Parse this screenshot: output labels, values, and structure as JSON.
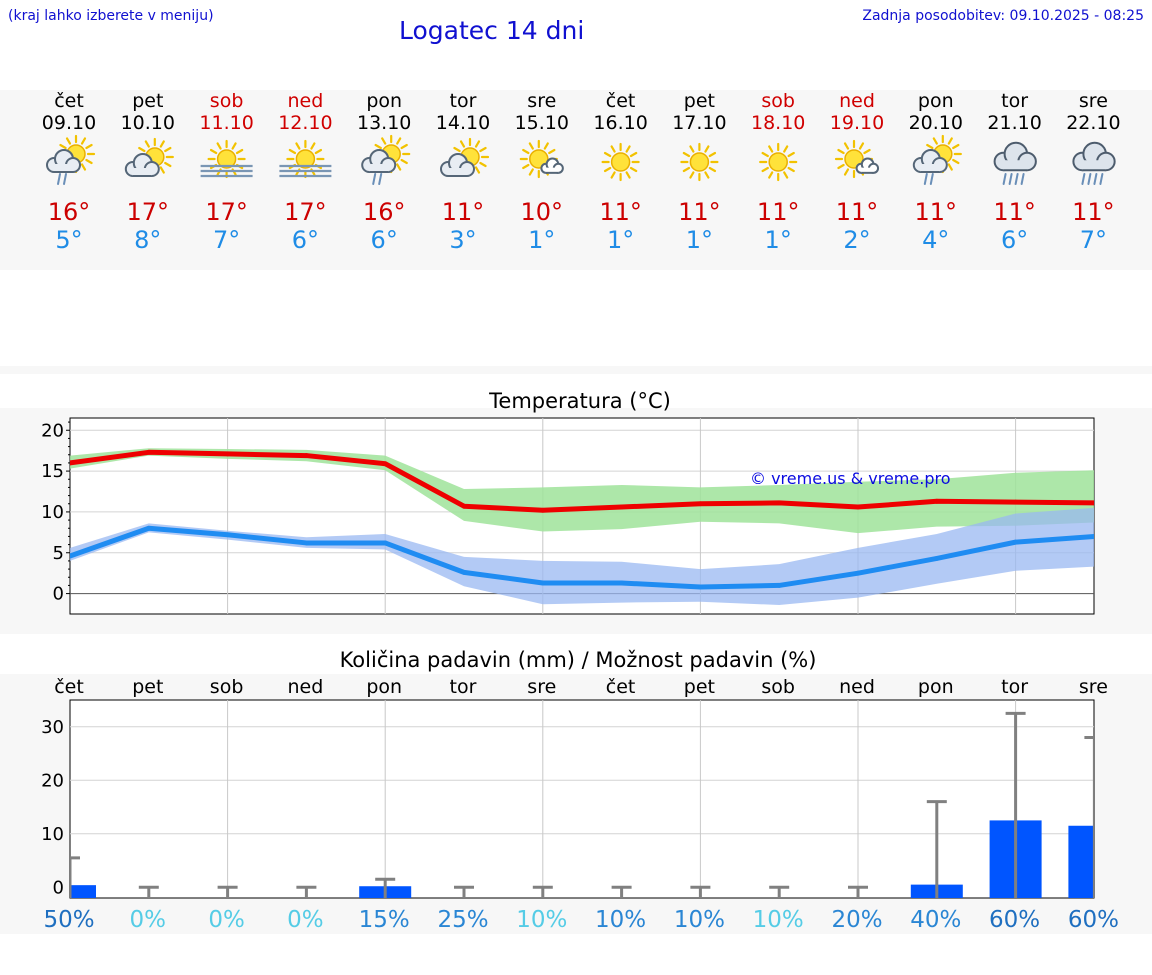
{
  "header": {
    "hint": "(kraj lahko izberete v meniju)",
    "title": "Logatec 14 dni",
    "updated": "Zadnja posodobitev: 09.10.2025 - 08:25"
  },
  "colors": {
    "weekday": "#000000",
    "weekend": "#d00000",
    "tmax": "#cc0000",
    "tmin": "#1f8ce6",
    "bar": "#0055ff"
  },
  "days": [
    {
      "dow": "čet",
      "date": "09.10",
      "weekend": false,
      "icon": "partly-cloudy-rain-icon",
      "tmax": "16°",
      "tmin": "5°"
    },
    {
      "dow": "pet",
      "date": "10.10",
      "weekend": false,
      "icon": "partly-cloudy-icon",
      "tmax": "17°",
      "tmin": "8°"
    },
    {
      "dow": "sob",
      "date": "11.10",
      "weekend": true,
      "icon": "sun-fog-icon",
      "tmax": "17°",
      "tmin": "7°"
    },
    {
      "dow": "ned",
      "date": "12.10",
      "weekend": true,
      "icon": "sun-fog-icon",
      "tmax": "17°",
      "tmin": "6°"
    },
    {
      "dow": "pon",
      "date": "13.10",
      "weekend": false,
      "icon": "partly-cloudy-rain-icon",
      "tmax": "16°",
      "tmin": "6°"
    },
    {
      "dow": "tor",
      "date": "14.10",
      "weekend": false,
      "icon": "partly-cloudy-icon",
      "tmax": "11°",
      "tmin": "3°"
    },
    {
      "dow": "sre",
      "date": "15.10",
      "weekend": false,
      "icon": "sun-small-cloud-icon",
      "tmax": "10°",
      "tmin": "1°"
    },
    {
      "dow": "čet",
      "date": "16.10",
      "weekend": false,
      "icon": "sun-icon",
      "tmax": "11°",
      "tmin": "1°"
    },
    {
      "dow": "pet",
      "date": "17.10",
      "weekend": false,
      "icon": "sun-icon",
      "tmax": "11°",
      "tmin": "1°"
    },
    {
      "dow": "sob",
      "date": "18.10",
      "weekend": true,
      "icon": "sun-icon",
      "tmax": "11°",
      "tmin": "1°"
    },
    {
      "dow": "ned",
      "date": "19.10",
      "weekend": true,
      "icon": "sun-small-cloud-icon",
      "tmax": "11°",
      "tmin": "2°"
    },
    {
      "dow": "pon",
      "date": "20.10",
      "weekend": false,
      "icon": "partly-cloudy-rain-icon",
      "tmax": "11°",
      "tmin": "4°"
    },
    {
      "dow": "tor",
      "date": "21.10",
      "weekend": false,
      "icon": "cloud-rain-icon",
      "tmax": "11°",
      "tmin": "6°"
    },
    {
      "dow": "sre",
      "date": "22.10",
      "weekend": false,
      "icon": "cloud-rain-icon",
      "tmax": "11°",
      "tmin": "7°"
    }
  ],
  "chart_data": [
    {
      "type": "line",
      "title": "Temperatura (°C)",
      "watermark": "© vreme.us & vreme.pro",
      "xlabel": "",
      "ylabel": "",
      "ylim": [
        -2.5,
        21.5
      ],
      "yticks": [
        0,
        5,
        10,
        15,
        20
      ],
      "grid": true,
      "x": [
        0,
        1,
        2,
        3,
        4,
        5,
        6,
        7,
        8,
        9,
        10,
        11,
        12,
        13
      ],
      "series": [
        {
          "name": "Tmax",
          "values": [
            16,
            17.3,
            17.1,
            16.9,
            15.9,
            10.7,
            10.2,
            10.6,
            11.0,
            11.1,
            10.6,
            11.3,
            11.2,
            11.1
          ],
          "band_low": [
            15.3,
            16.9,
            16.5,
            16.2,
            15.1,
            8.9,
            7.6,
            7.9,
            8.8,
            8.6,
            7.4,
            8.2,
            8.3,
            8.7
          ],
          "band_high": [
            16.9,
            17.8,
            17.7,
            17.6,
            16.9,
            12.8,
            13.0,
            13.3,
            13.0,
            13.3,
            13.7,
            14.0,
            14.8,
            15.1
          ]
        },
        {
          "name": "Tmin",
          "values": [
            4.6,
            8.0,
            7.2,
            6.2,
            6.2,
            2.6,
            1.3,
            1.3,
            0.8,
            1.0,
            2.5,
            4.3,
            6.3,
            7.0
          ],
          "band_low": [
            4.0,
            7.5,
            6.6,
            5.6,
            5.4,
            0.9,
            -1.3,
            -1.1,
            -1.0,
            -1.4,
            -0.5,
            1.2,
            2.8,
            3.3
          ],
          "band_high": [
            5.6,
            8.6,
            7.7,
            6.9,
            7.3,
            4.5,
            4.0,
            3.9,
            3.0,
            3.6,
            5.6,
            7.3,
            9.8,
            10.5
          ]
        }
      ]
    },
    {
      "type": "bar",
      "title": "Količina padavin (mm) / Možnost padavin (%)",
      "xlabel": "",
      "ylabel": "",
      "ylim": [
        -2,
        35
      ],
      "yticks": [
        0,
        10,
        20,
        30
      ],
      "grid": true,
      "categories": [
        "čet",
        "pet",
        "sob",
        "ned",
        "pon",
        "tor",
        "sre",
        "čet",
        "pet",
        "sob",
        "ned",
        "pon",
        "tor",
        "sre"
      ],
      "values": [
        0.4,
        0,
        0,
        0,
        0.2,
        0,
        0,
        0,
        0,
        0,
        0,
        0.5,
        12.5,
        11.5
      ],
      "max_values": [
        5.5,
        0,
        0,
        0,
        1.5,
        0,
        0,
        0,
        0,
        0,
        0,
        16,
        32.5,
        28
      ],
      "probability": [
        "50%",
        "0%",
        "0%",
        "0%",
        "15%",
        "25%",
        "10%",
        "10%",
        "10%",
        "10%",
        "20%",
        "40%",
        "60%",
        "60%"
      ],
      "probability_colors": [
        "#1f6fc0",
        "#55cce6",
        "#55cce6",
        "#55cce6",
        "#2a86d4",
        "#2a86d4",
        "#55cce6",
        "#2a86d4",
        "#2a86d4",
        "#55cce6",
        "#2a86d4",
        "#2a86d4",
        "#1f6fc0",
        "#1f6fc0"
      ]
    }
  ]
}
